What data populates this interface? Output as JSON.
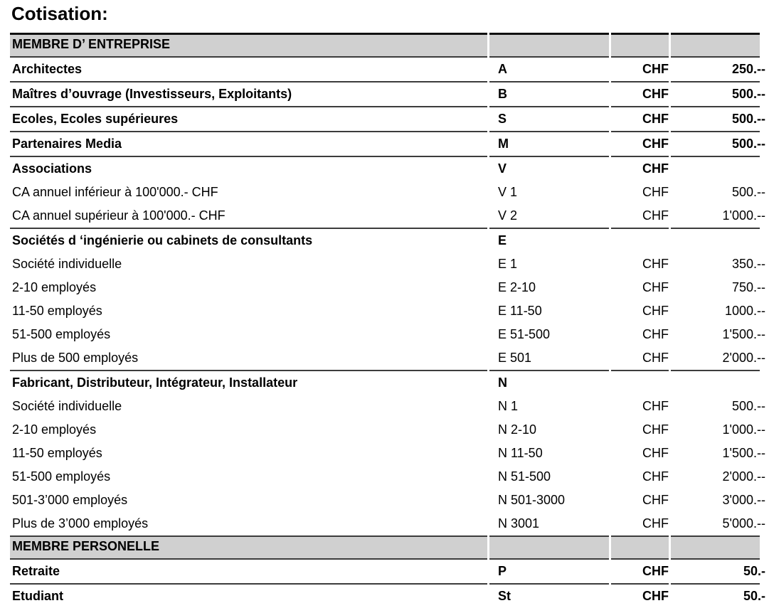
{
  "page": {
    "title": "Cotisation:"
  },
  "table": {
    "columns": [
      "category",
      "code",
      "currency",
      "amount"
    ],
    "colors": {
      "header_background": "#d0d0d0",
      "rule": "#3c3c3c",
      "text": "#000000"
    },
    "rows": [
      {
        "type": "header",
        "label": "MEMBRE D’ ENTREPRISE",
        "code": "",
        "currency": "",
        "amount": ""
      },
      {
        "type": "section",
        "label": "Architectes",
        "code": "A",
        "currency": "CHF",
        "amount": "250.--"
      },
      {
        "type": "section",
        "label": "Maîtres d’ouvrage (Investisseurs, Exploitants)",
        "code": "B",
        "currency": "CHF",
        "amount": "500.--"
      },
      {
        "type": "section",
        "label": "Ecoles, Ecoles supérieures",
        "code": "S",
        "currency": "CHF",
        "amount": "500.--"
      },
      {
        "type": "section",
        "label": "Partenaires Media",
        "code": "M",
        "currency": "CHF",
        "amount": "500.--"
      },
      {
        "type": "section",
        "label": "Associations",
        "code": "V",
        "currency": "CHF",
        "amount": ""
      },
      {
        "type": "sub",
        "label": "CA annuel inférieur à 100'000.- CHF",
        "code": "V 1",
        "currency": "CHF",
        "amount": "500.--"
      },
      {
        "type": "sub",
        "label": "CA annuel supérieur à 100'000.- CHF",
        "code": "V 2",
        "currency": "CHF",
        "amount": "1'000.--"
      },
      {
        "type": "section",
        "label": "Sociétés d ‘ingénierie ou cabinets de consultants",
        "code": "E",
        "currency": "",
        "amount": ""
      },
      {
        "type": "sub",
        "label": "Société individuelle",
        "code": "E 1",
        "currency": "CHF",
        "amount": "350.--"
      },
      {
        "type": "sub",
        "label": "2-10 employés",
        "code": "E 2-10",
        "currency": "CHF",
        "amount": "750.--"
      },
      {
        "type": "sub",
        "label": "11-50 employés",
        "code": "E 11-50",
        "currency": "CHF",
        "amount": "1000.--"
      },
      {
        "type": "sub",
        "label": "51-500 employés",
        "code": "E 51-500",
        "currency": "CHF",
        "amount": "1'500.--"
      },
      {
        "type": "sub",
        "label": "Plus de 500 employés",
        "code": "E 501",
        "currency": "CHF",
        "amount": "2'000.--"
      },
      {
        "type": "section",
        "label": "Fabricant, Distributeur, Intégrateur, Installateur",
        "code": "N",
        "currency": "",
        "amount": ""
      },
      {
        "type": "sub",
        "label": "Société individuelle",
        "code": "N 1",
        "currency": "CHF",
        "amount": "500.--"
      },
      {
        "type": "sub",
        "label": "2-10 employés",
        "code": "N 2-10",
        "currency": "CHF",
        "amount": "1'000.--"
      },
      {
        "type": "sub",
        "label": "11-50 employés",
        "code": "N 11-50",
        "currency": "CHF",
        "amount": "1'500.--"
      },
      {
        "type": "sub",
        "label": "51-500 employés",
        "code": "N 51-500",
        "currency": "CHF",
        "amount": "2'000.--"
      },
      {
        "type": "sub",
        "label": "501-3’000 employés",
        "code": "N 501-3000",
        "currency": "CHF",
        "amount": "3'000.--"
      },
      {
        "type": "sub",
        "label": "Plus de 3’000 employés",
        "code": "N 3001",
        "currency": "CHF",
        "amount": "5'000.--"
      },
      {
        "type": "header",
        "label": "MEMBRE PERSONELLE",
        "code": "",
        "currency": "",
        "amount": ""
      },
      {
        "type": "section",
        "label": "Retraite",
        "code": "P",
        "currency": "CHF",
        "amount": "50.-"
      },
      {
        "type": "section",
        "label": "Etudiant",
        "code": "St",
        "currency": "CHF",
        "amount": "50.-"
      }
    ]
  }
}
